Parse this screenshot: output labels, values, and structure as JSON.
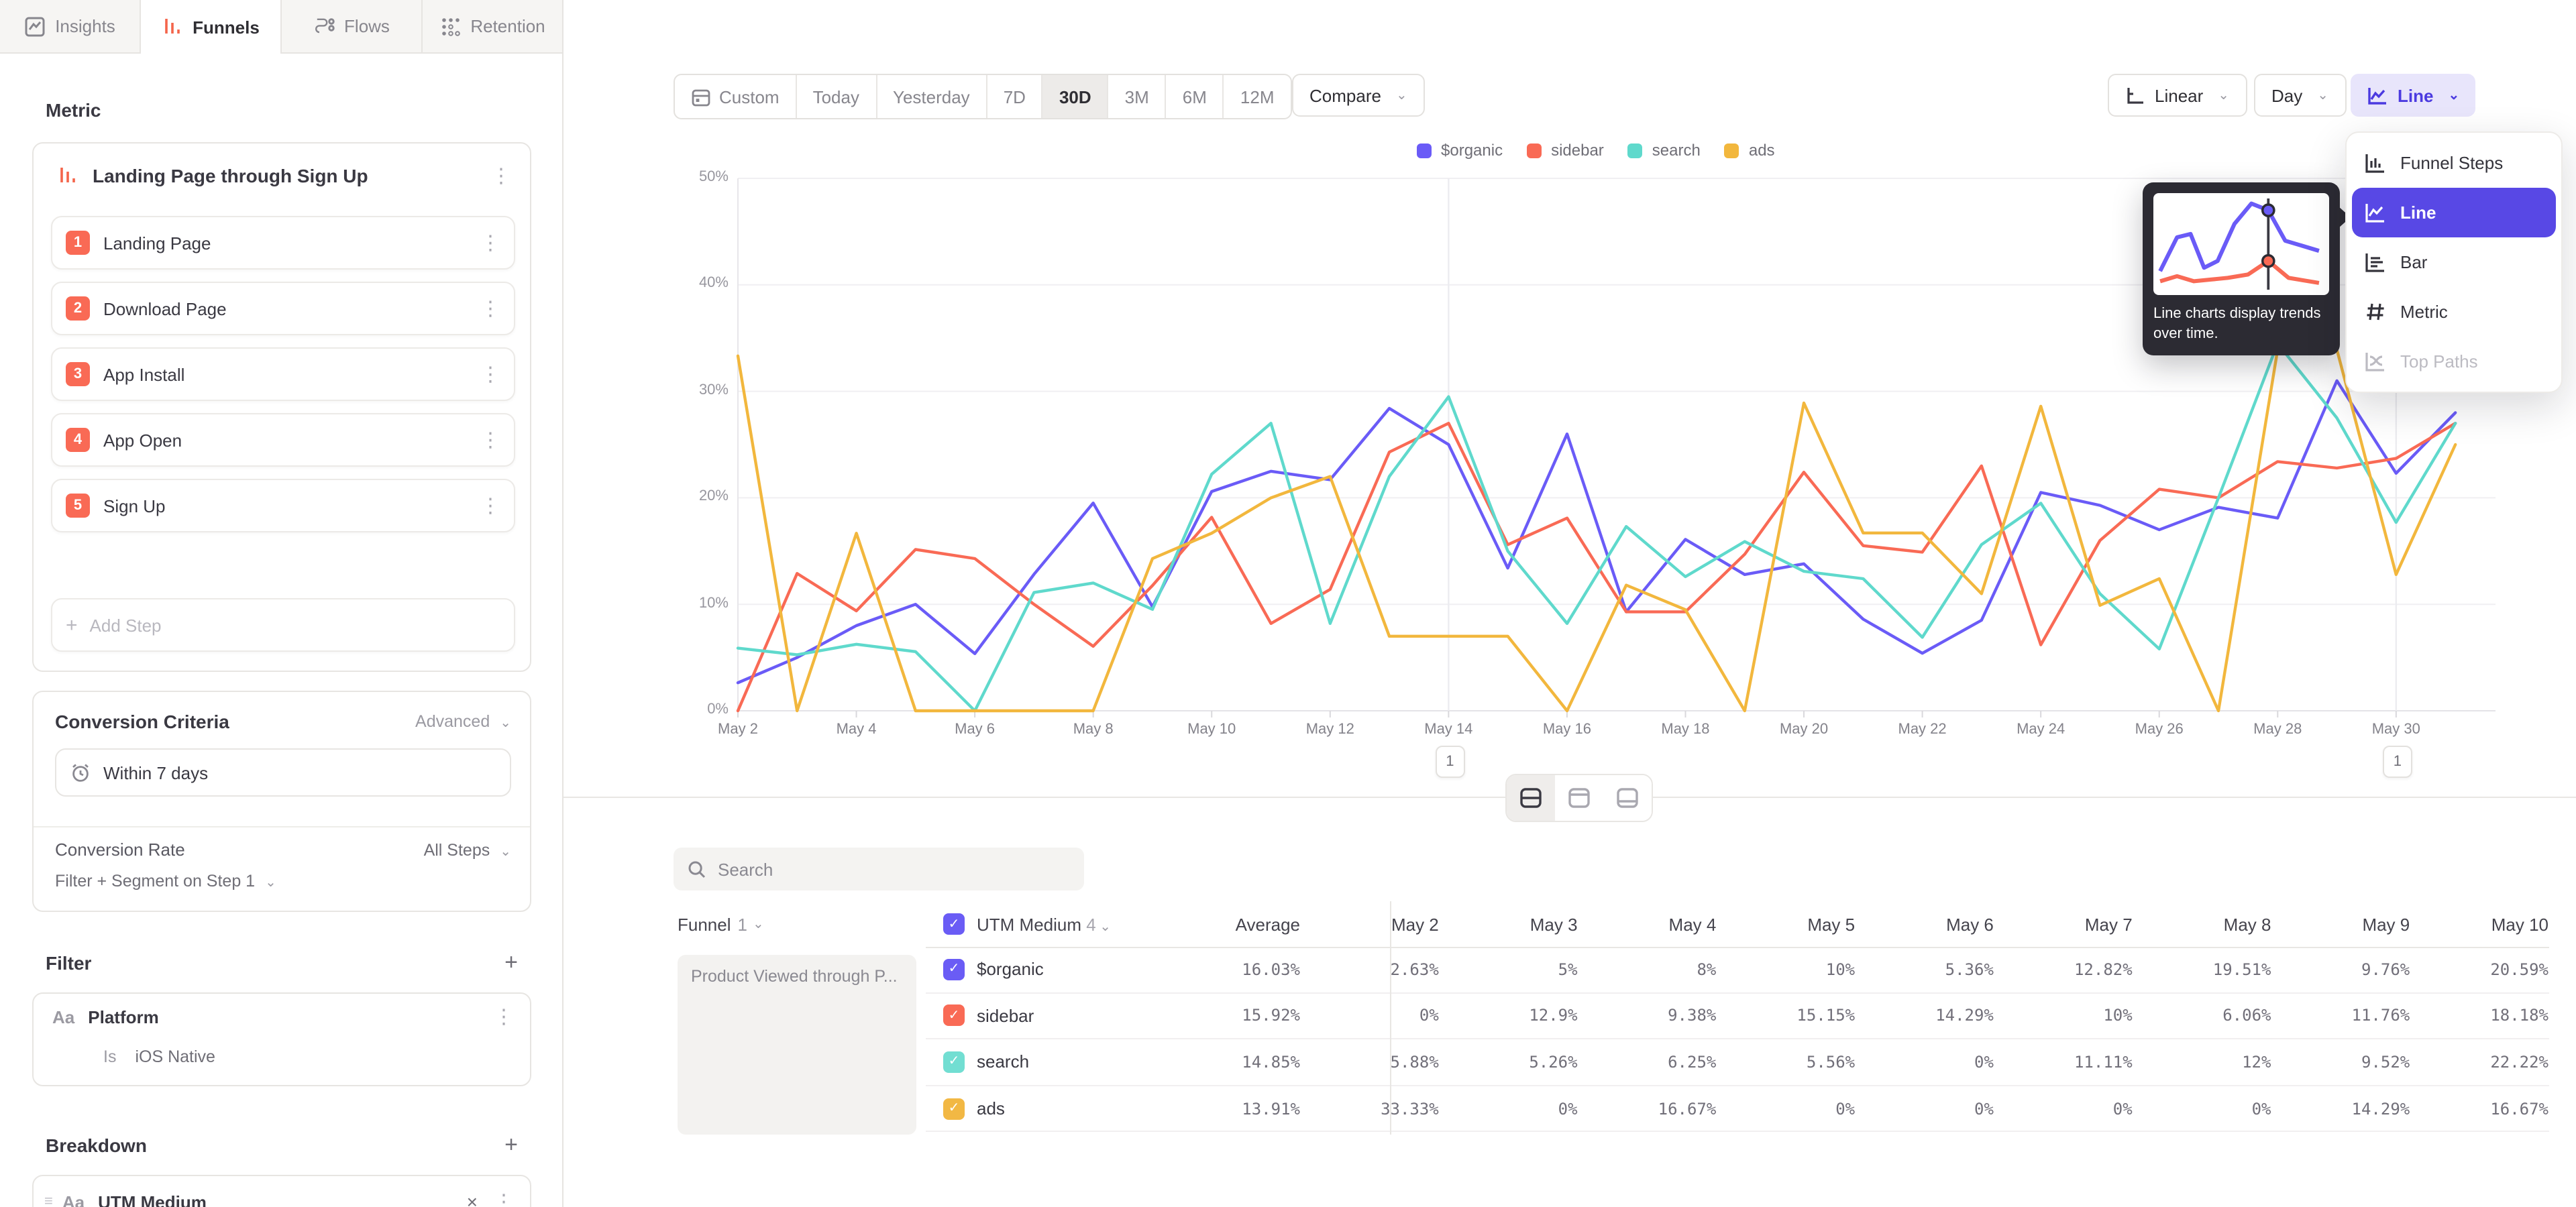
{
  "tabs": [
    {
      "label": "Insights",
      "active": false
    },
    {
      "label": "Funnels",
      "active": true
    },
    {
      "label": "Flows",
      "active": false
    },
    {
      "label": "Retention",
      "active": false
    }
  ],
  "sidebar": {
    "metric_title": "Metric",
    "funnel": {
      "title": "Landing Page through Sign Up",
      "steps": [
        {
          "num": "1",
          "label": "Landing Page"
        },
        {
          "num": "2",
          "label": "Download Page"
        },
        {
          "num": "3",
          "label": "App Install"
        },
        {
          "num": "4",
          "label": "App Open"
        },
        {
          "num": "5",
          "label": "Sign Up"
        }
      ],
      "add_step_label": "Add Step"
    },
    "conversion": {
      "title": "Conversion Criteria",
      "advanced_label": "Advanced",
      "window": "Within 7 days",
      "rate_label": "Conversion Rate",
      "rate_value": "All Steps",
      "segment_label": "Filter + Segment on Step 1"
    },
    "filter": {
      "title": "Filter",
      "type_badge": "Aa",
      "property": "Platform",
      "operator": "Is",
      "value": "iOS Native"
    },
    "breakdown": {
      "title": "Breakdown",
      "type_badge": "Aa",
      "property": "UTM Medium"
    }
  },
  "toolbar": {
    "ranges": [
      "Custom",
      "Today",
      "Yesterday",
      "7D",
      "30D",
      "3M",
      "6M",
      "12M"
    ],
    "active_range": "30D",
    "compare_label": "Compare",
    "scale_label": "Linear",
    "granularity_label": "Day",
    "chart_type_label": "Line"
  },
  "chart_menu": {
    "items": [
      {
        "label": "Funnel Steps",
        "state": "normal"
      },
      {
        "label": "Line",
        "state": "selected"
      },
      {
        "label": "Bar",
        "state": "normal"
      },
      {
        "label": "Metric",
        "state": "normal"
      },
      {
        "label": "Top Paths",
        "state": "disabled"
      }
    ],
    "tooltip_text": "Line charts display trends over time."
  },
  "search": {
    "placeholder": "Search"
  },
  "chart_data": {
    "type": "line",
    "ylim": [
      0,
      50
    ],
    "y_ticks": [
      "0%",
      "10%",
      "20%",
      "30%",
      "40%",
      "50%"
    ],
    "x": [
      "May 2",
      "May 3",
      "May 4",
      "May 5",
      "May 6",
      "May 7",
      "May 8",
      "May 9",
      "May 10",
      "May 11",
      "May 12",
      "May 13",
      "May 14",
      "May 15",
      "May 16",
      "May 17",
      "May 18",
      "May 19",
      "May 20",
      "May 21",
      "May 22",
      "May 23",
      "May 24",
      "May 25",
      "May 26",
      "May 27",
      "May 28",
      "May 29",
      "May 30",
      "May 31"
    ],
    "x_tick_every": 2,
    "grid": true,
    "legend_position": "top",
    "annotations": [
      {
        "label": "1",
        "x": "May 14"
      },
      {
        "label": "1",
        "x": "May 30"
      }
    ],
    "series": [
      {
        "name": "$organic",
        "color": "#6A5BF7",
        "values": [
          2.63,
          5,
          8,
          10,
          5.36,
          12.82,
          19.51,
          9.76,
          20.59,
          22.5,
          21.7,
          28.4,
          25,
          13.4,
          26,
          9.3,
          16.1,
          12.8,
          13.8,
          8.6,
          5.4,
          8.5,
          20.5,
          19.3,
          17,
          19.1,
          18.1,
          31,
          22.3,
          28
        ]
      },
      {
        "name": "sidebar",
        "color": "#F96A55",
        "values": [
          0,
          12.9,
          9.38,
          15.15,
          14.29,
          10,
          6.06,
          11.76,
          18.18,
          8.2,
          11.4,
          24.3,
          27,
          15.6,
          18.1,
          9.3,
          9.3,
          14.7,
          22.4,
          15.5,
          14.9,
          23,
          6.2,
          16,
          20.8,
          20,
          23.4,
          22.8,
          23.7,
          27
        ]
      },
      {
        "name": "search",
        "color": "#5FD9CC",
        "values": [
          5.88,
          5.26,
          6.25,
          5.56,
          0,
          11.11,
          12,
          9.52,
          22.22,
          27,
          8.2,
          22,
          29.5,
          15,
          8.2,
          17.3,
          12.6,
          15.9,
          13.1,
          12.4,
          6.9,
          15.6,
          19.5,
          11,
          5.8,
          20,
          34.5,
          27.5,
          17.7,
          27
        ]
      },
      {
        "name": "ads",
        "color": "#F2B73D",
        "values": [
          33.33,
          0,
          16.67,
          0,
          0,
          0,
          0,
          14.29,
          16.67,
          20,
          22,
          7,
          7,
          7,
          0,
          11.8,
          9.5,
          0,
          28.9,
          16.7,
          16.7,
          11,
          28.6,
          9.9,
          12.4,
          0,
          33.9,
          33.9,
          12.8,
          25
        ]
      }
    ]
  },
  "table": {
    "funnel_col_label": "Funnel",
    "funnel_col_count": "1",
    "breakdown_col_label": "UTM Medium",
    "breakdown_col_count": "4",
    "row_group_label": "Product Viewed through P...",
    "columns": [
      "Average",
      "May 2",
      "May 3",
      "May 4",
      "May 5",
      "May 6",
      "May 7",
      "May 8",
      "May 9",
      "May 10"
    ],
    "rows": [
      {
        "name": "$organic",
        "color": "#6A5CF5",
        "values": [
          "16.03%",
          "2.63%",
          "5%",
          "8%",
          "10%",
          "5.36%",
          "12.82%",
          "19.51%",
          "9.76%",
          "20.59%"
        ]
      },
      {
        "name": "sidebar",
        "color": "#F96A55",
        "values": [
          "15.92%",
          "0%",
          "12.9%",
          "9.38%",
          "15.15%",
          "14.29%",
          "10%",
          "6.06%",
          "11.76%",
          "18.18%"
        ]
      },
      {
        "name": "search",
        "color": "#72DED2",
        "values": [
          "14.85%",
          "5.88%",
          "5.26%",
          "6.25%",
          "5.56%",
          "0%",
          "11.11%",
          "12%",
          "9.52%",
          "22.22%"
        ]
      },
      {
        "name": "ads",
        "color": "#F2B844",
        "values": [
          "13.91%",
          "33.33%",
          "0%",
          "16.67%",
          "0%",
          "0%",
          "0%",
          "0%",
          "14.29%",
          "16.67%"
        ]
      }
    ]
  },
  "colors": {
    "accent_purple": "#5848E5",
    "funnel_orange": "#F4654B",
    "border": "#E6E4E1"
  }
}
